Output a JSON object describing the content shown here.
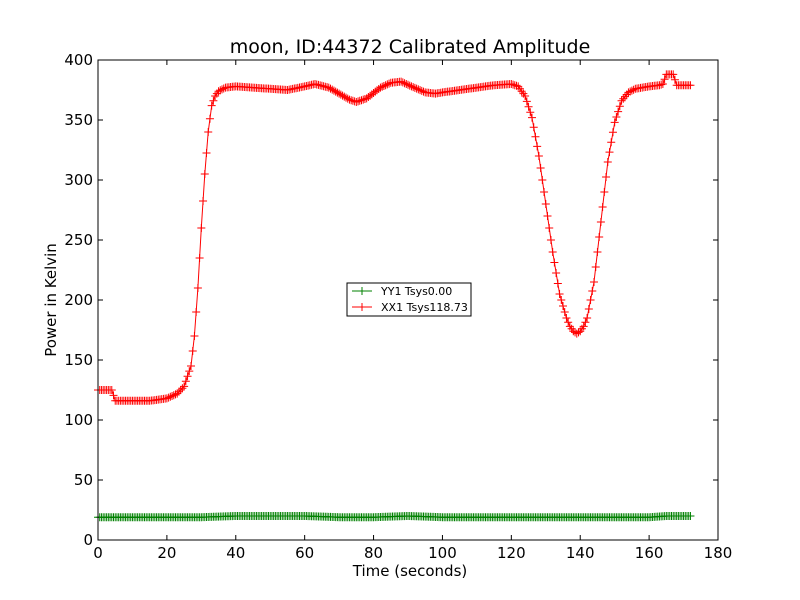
{
  "chart_data": {
    "type": "line",
    "title": "moon, ID:44372 Calibrated Amplitude",
    "xlabel": "Time (seconds)",
    "ylabel": "Power in Kelvin",
    "xlim": [
      0,
      180
    ],
    "ylim": [
      0,
      400
    ],
    "xticks": [
      0,
      20,
      40,
      60,
      80,
      100,
      120,
      140,
      160,
      180
    ],
    "yticks": [
      0,
      50,
      100,
      150,
      200,
      250,
      300,
      350,
      400
    ],
    "grid": false,
    "legend_position": "center",
    "marker": "+",
    "series": [
      {
        "name": "YY1 Tsys0.00",
        "color": "#008000",
        "x": [
          0,
          5,
          10,
          20,
          30,
          40,
          50,
          60,
          70,
          80,
          90,
          100,
          110,
          120,
          130,
          140,
          150,
          160,
          165,
          168,
          172
        ],
        "y": [
          19,
          19,
          19,
          19,
          19,
          20,
          20,
          20,
          19,
          19,
          20,
          19,
          19,
          19,
          19,
          19,
          19,
          19,
          20,
          20,
          20
        ]
      },
      {
        "name": "XX1 Tsys118.73",
        "color": "#ff0000",
        "x": [
          0,
          4,
          5,
          10,
          15,
          20,
          23,
          25,
          27,
          28,
          29,
          30,
          31,
          32,
          33,
          34,
          35,
          37,
          40,
          45,
          50,
          55,
          60,
          63,
          67,
          70,
          73,
          75,
          78,
          82,
          85,
          88,
          91,
          95,
          98,
          100,
          105,
          110,
          115,
          120,
          122,
          124,
          126,
          128,
          130,
          132,
          134,
          136,
          137,
          138,
          139,
          140,
          141,
          142,
          144,
          146,
          148,
          150,
          152,
          154,
          156,
          160,
          163,
          164,
          165,
          166,
          167,
          168,
          170,
          172
        ],
        "y": [
          125,
          125,
          116,
          116,
          116,
          118,
          122,
          128,
          145,
          170,
          210,
          260,
          305,
          340,
          362,
          370,
          374,
          377,
          378,
          377,
          376,
          375,
          378,
          380,
          377,
          372,
          367,
          365,
          368,
          377,
          381,
          382,
          378,
          373,
          372,
          373,
          375,
          377,
          379,
          380,
          378,
          370,
          352,
          320,
          280,
          240,
          205,
          185,
          178,
          174,
          172,
          174,
          178,
          185,
          215,
          265,
          315,
          348,
          366,
          373,
          376,
          378,
          379,
          380,
          388,
          388,
          388,
          379,
          379,
          379
        ]
      }
    ]
  }
}
